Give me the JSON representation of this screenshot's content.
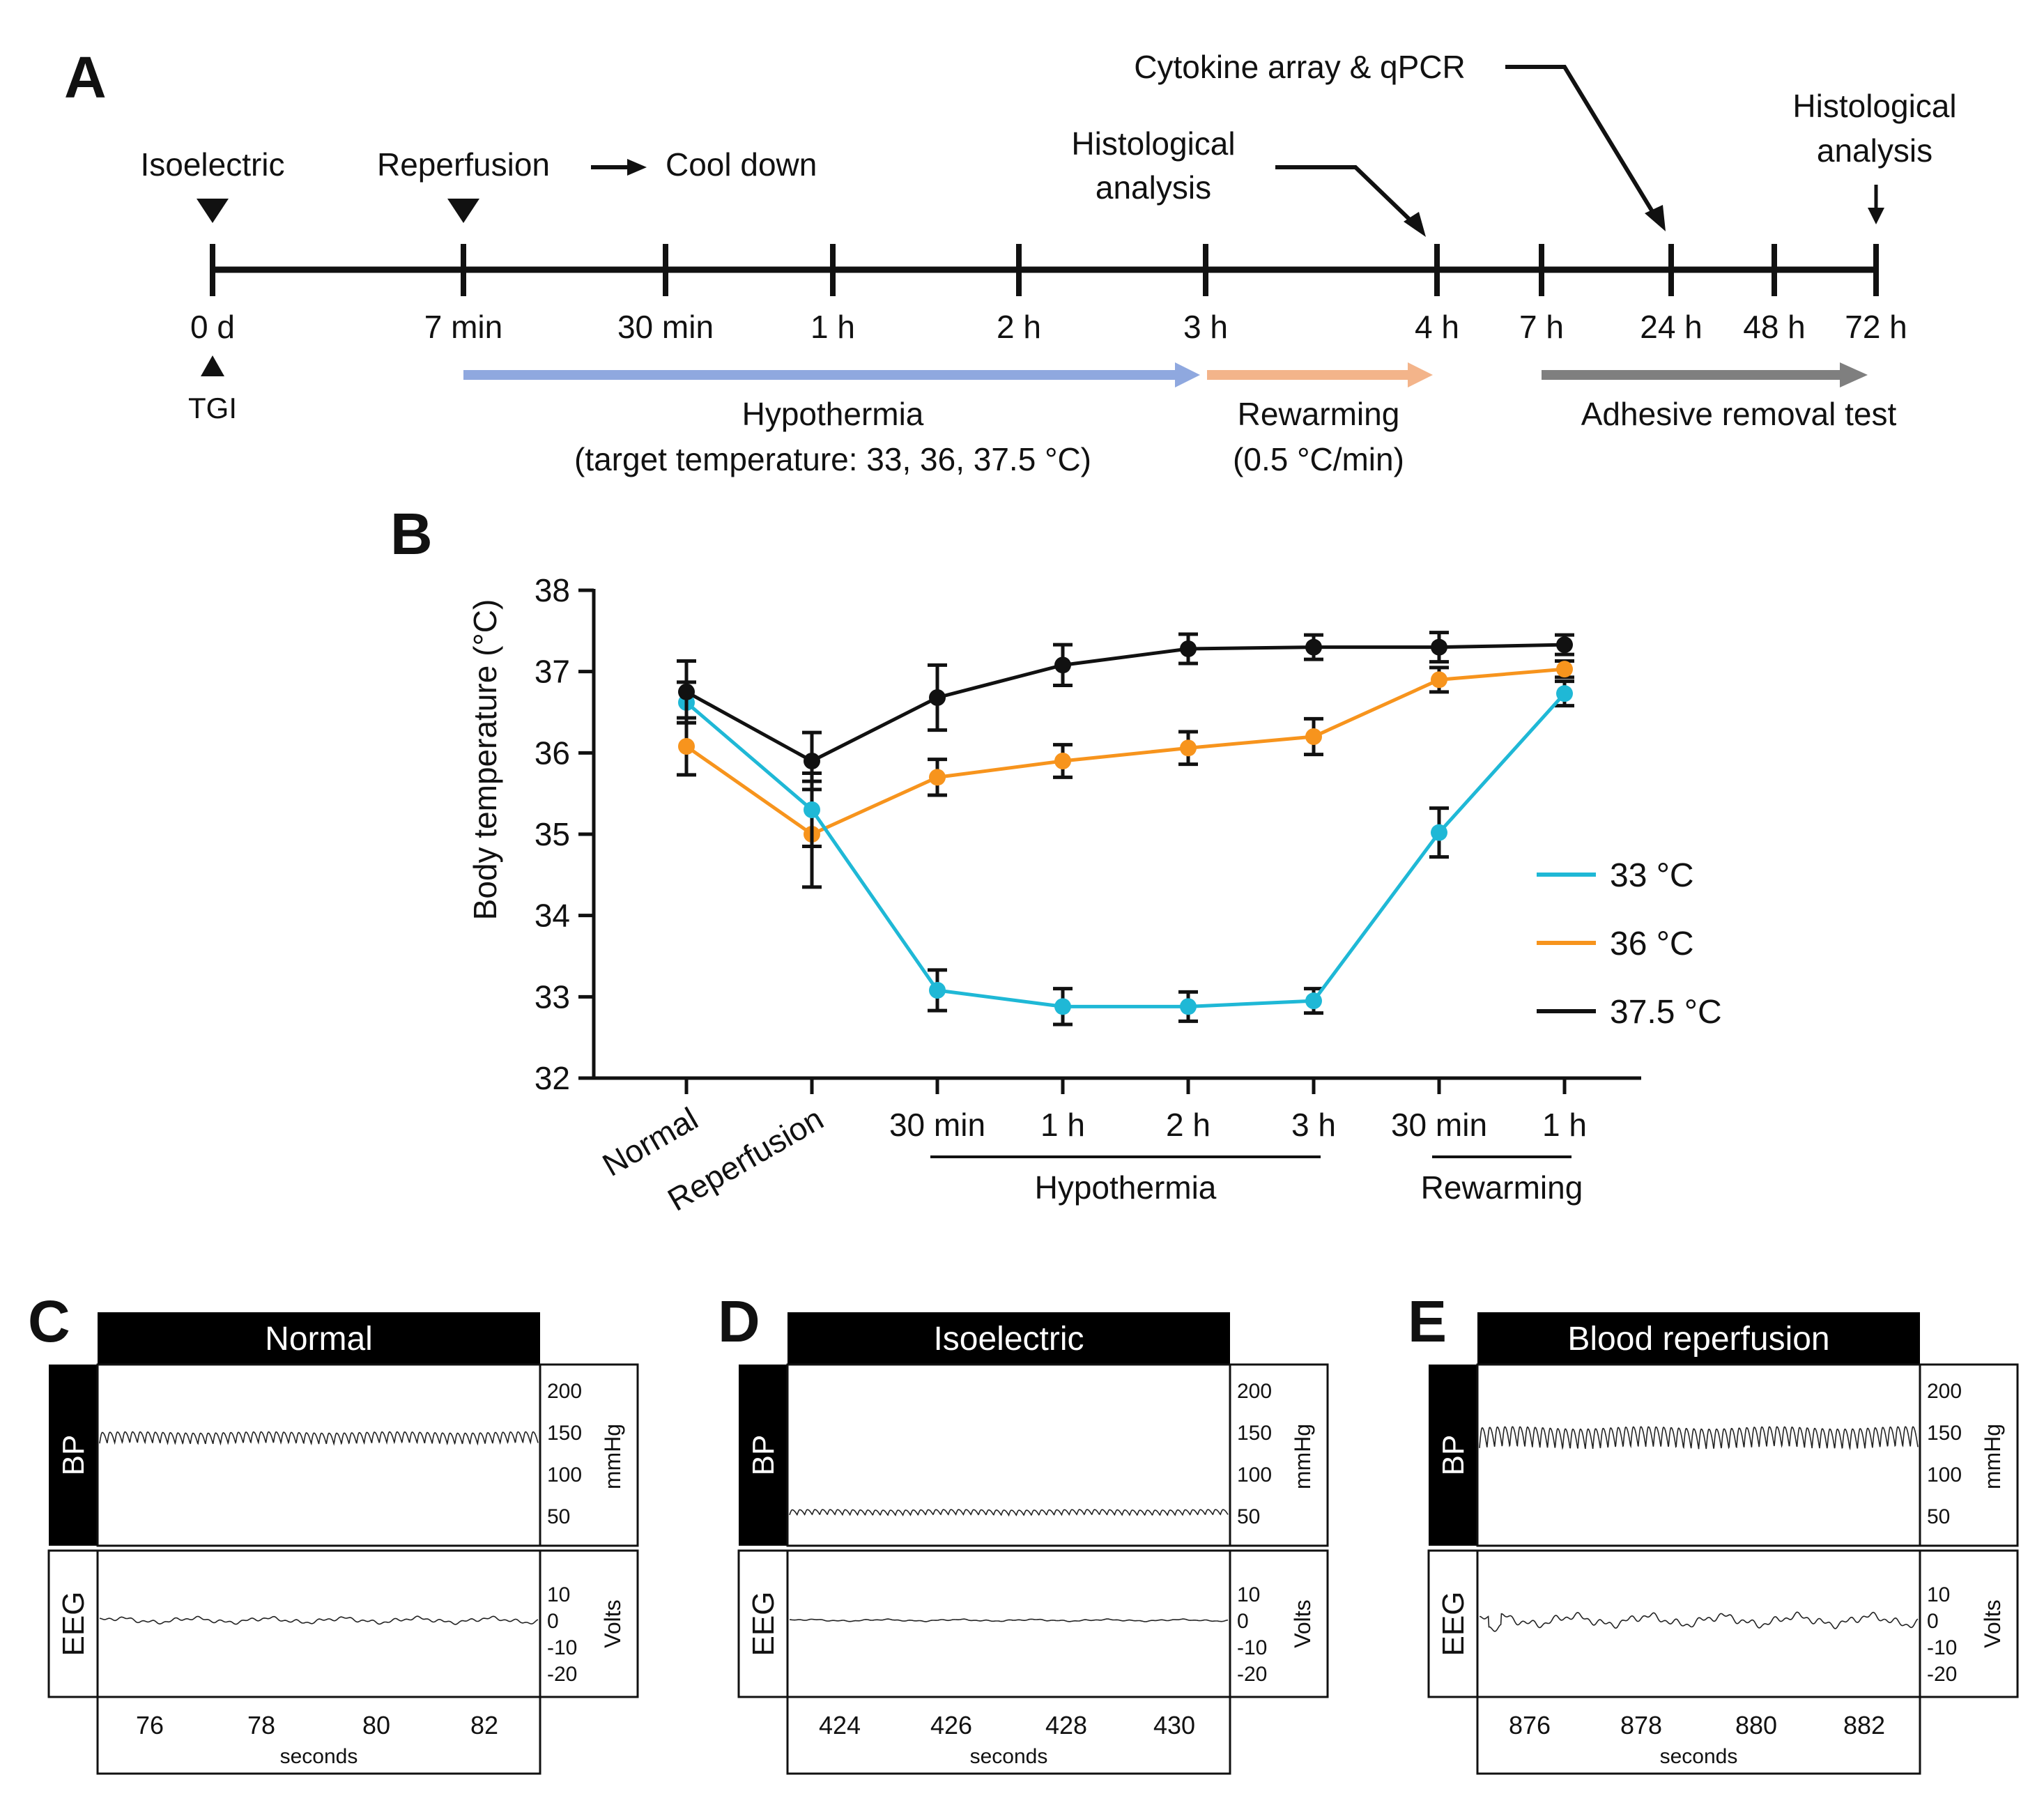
{
  "panels": {
    "a": "A",
    "b": "B",
    "c": "C",
    "d": "D",
    "e": "E"
  },
  "timeline": {
    "ticks": [
      "0 d",
      "7 min",
      "30 min",
      "1 h",
      "2 h",
      "3 h",
      "4 h",
      "7 h",
      "24 h",
      "48 h",
      "72 h"
    ],
    "top_labels": {
      "isoelectric": "Isoelectric",
      "reperfusion": "Reperfusion",
      "cool_down": "Cool down",
      "histo1_line1": "Histological",
      "histo1_line2": "analysis",
      "cytokine": "Cytokine array & qPCR",
      "histo2_line1": "Histological",
      "histo2_line2": "analysis"
    },
    "tgi": "TGI",
    "phases": {
      "hypothermia": "Hypothermia",
      "hypothermia_sub": "(target temperature: 33, 36, 37.5 °C)",
      "rewarming": "Rewarming",
      "rewarming_sub": "(0.5 °C/min)",
      "adhesive": "Adhesive removal test"
    },
    "colors": {
      "hypothermia": "#8fa8df",
      "rewarming": "#f3b48a",
      "adhesive": "#7f7f7f"
    }
  },
  "chart_data": {
    "type": "line",
    "ylabel": "Body temperature (°C)",
    "ylim": [
      32,
      38
    ],
    "yticks": [
      "32",
      "33",
      "34",
      "35",
      "36",
      "37",
      "38"
    ],
    "categories": [
      "Normal",
      "Reperfusion",
      "30 min",
      "1 h",
      "2 h",
      "3 h",
      "30 min",
      "1 h"
    ],
    "groups": [
      {
        "label": "Hypothermia",
        "from": 2,
        "to": 5
      },
      {
        "label": "Rewarming",
        "from": 6,
        "to": 7
      }
    ],
    "series": [
      {
        "name": "33 °C",
        "color": "#1fb8d6",
        "values": [
          36.62,
          35.3,
          33.08,
          32.88,
          32.88,
          32.95,
          35.02,
          36.73
        ],
        "errors": [
          0.25,
          0.45,
          0.25,
          0.22,
          0.18,
          0.15,
          0.3,
          0.15
        ]
      },
      {
        "name": "36 °C",
        "color": "#f7941d",
        "values": [
          36.08,
          35.0,
          35.7,
          35.9,
          36.06,
          36.2,
          36.9,
          37.03
        ],
        "errors": [
          0.35,
          0.65,
          0.22,
          0.2,
          0.2,
          0.22,
          0.15,
          0.1
        ]
      },
      {
        "name": "37.5 °C",
        "color": "#111111",
        "values": [
          36.75,
          35.9,
          36.68,
          37.08,
          37.28,
          37.3,
          37.3,
          37.33
        ],
        "errors": [
          0.38,
          0.35,
          0.4,
          0.25,
          0.18,
          0.15,
          0.18,
          0.12
        ]
      }
    ]
  },
  "traces": [
    {
      "title": "Normal",
      "bp_label": "BP",
      "eeg_label": "EEG",
      "bp_ticks": [
        "200",
        "150",
        "100",
        "50"
      ],
      "bp_unit": "mmHg",
      "eeg_ticks": [
        "10",
        "0",
        "-10",
        "-20"
      ],
      "eeg_unit": "Volts",
      "x_ticks": [
        "76",
        "78",
        "80",
        "82"
      ],
      "x_label": "seconds",
      "bp_mean": 143,
      "bp_amp": 13,
      "eeg_amp": 1.5
    },
    {
      "title": "Isoelectric",
      "bp_label": "BP",
      "eeg_label": "EEG",
      "bp_ticks": [
        "200",
        "150",
        "100",
        "50"
      ],
      "bp_unit": "mmHg",
      "eeg_ticks": [
        "10",
        "0",
        "-10",
        "-20"
      ],
      "eeg_unit": "Volts",
      "x_ticks": [
        "424",
        "426",
        "428",
        "430"
      ],
      "x_label": "seconds",
      "bp_mean": 54,
      "bp_amp": 6,
      "eeg_amp": 0.5
    },
    {
      "title": "Blood reperfusion",
      "bp_label": "BP",
      "eeg_label": "EEG",
      "bp_ticks": [
        "200",
        "150",
        "100",
        "50"
      ],
      "bp_unit": "mmHg",
      "eeg_ticks": [
        "10",
        "0",
        "-10",
        "-20"
      ],
      "eeg_unit": "Volts",
      "x_ticks": [
        "876",
        "878",
        "880",
        "882"
      ],
      "x_label": "seconds",
      "bp_mean": 143,
      "bp_amp": 24,
      "eeg_amp": 3
    }
  ]
}
